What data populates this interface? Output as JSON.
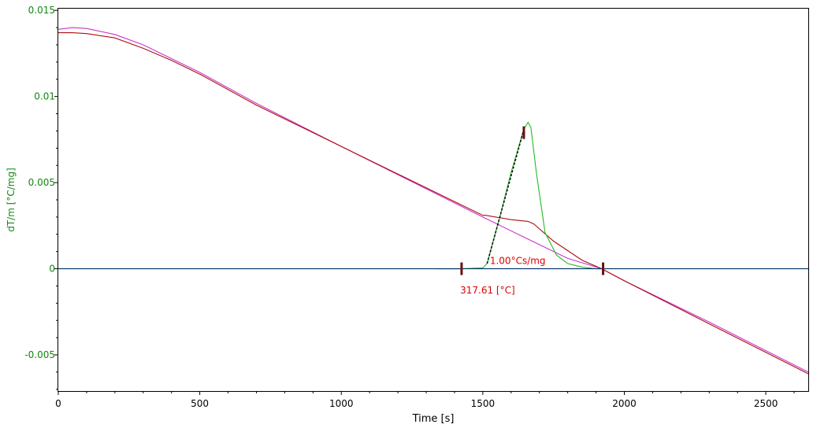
{
  "chart_data": {
    "type": "line",
    "xlabel": "Time [s]",
    "ylabel": "dT/m  [°C/mg]",
    "xlim": [
      0,
      2650
    ],
    "ylim": [
      -0.0071,
      0.0151
    ],
    "x_ticks": [
      0,
      500,
      1000,
      1500,
      2000,
      2500
    ],
    "x_tick_labels": [
      "0",
      "500",
      "1000",
      "1500",
      "2000",
      "2500"
    ],
    "y_ticks": [
      0.015,
      0.01,
      0.005,
      0,
      -0.005
    ],
    "y_tick_labels": [
      "0.015",
      "0.01",
      "0.005",
      "0",
      "-0.005"
    ],
    "grid": false,
    "series": [
      {
        "color": "#cc33cc",
        "x": [
          0,
          50,
          100,
          200,
          300,
          400,
          500,
          700,
          1000,
          1500,
          1650,
          1800,
          1920,
          2000,
          2300,
          2650
        ],
        "y": [
          0.0139,
          0.014,
          0.01395,
          0.0136,
          0.013,
          0.0122,
          0.0114,
          0.0096,
          0.0071,
          0.003,
          0.0018,
          0.0006,
          0.0,
          -0.0007,
          -0.0031,
          -0.006
        ]
      },
      {
        "color": "#aa1111",
        "x": [
          0,
          50,
          100,
          200,
          300,
          400,
          500,
          700,
          1000,
          1200,
          1400,
          1500,
          1510,
          1600,
          1660,
          1680,
          1750,
          1850,
          1920,
          2000,
          2300,
          2650
        ],
        "y": [
          0.0137,
          0.0137,
          0.01365,
          0.0134,
          0.0128,
          0.0121,
          0.0113,
          0.0095,
          0.0071,
          0.0055,
          0.0039,
          0.0031,
          0.0031,
          0.00285,
          0.00275,
          0.0026,
          0.0016,
          0.0005,
          0.0,
          -0.0007,
          -0.0032,
          -0.0061
        ]
      },
      {
        "color": "#22bb22",
        "x": [
          1330,
          1420,
          1500,
          1515,
          1560,
          1600,
          1645,
          1660,
          1670,
          1690,
          1720,
          1760,
          1800,
          1850,
          1900,
          1920
        ],
        "y": [
          0.0,
          0.0,
          5e-05,
          0.0003,
          0.003,
          0.0056,
          0.0081,
          0.0085,
          0.0082,
          0.0055,
          0.0021,
          0.0008,
          0.0003,
          0.0001,
          0.0,
          0.0
        ]
      },
      {
        "color": "#111111",
        "dashed": true,
        "x": [
          1515,
          1645
        ],
        "y": [
          0.0003,
          0.0081
        ]
      },
      {
        "color": "#003366",
        "x": [
          0,
          2650
        ],
        "y": [
          0.0,
          0.0
        ]
      }
    ],
    "markers": [
      {
        "x": 1425,
        "y": 0.0
      },
      {
        "x": 1925,
        "y": 0.0
      },
      {
        "x": 1645,
        "y": 0.0079
      }
    ],
    "annotations": [
      {
        "text": "1.00°Cs/mg",
        "x": 1525,
        "y": 0.0
      },
      {
        "text": "317.61 [°C]",
        "x": 1420,
        "y": -0.0017
      }
    ]
  }
}
